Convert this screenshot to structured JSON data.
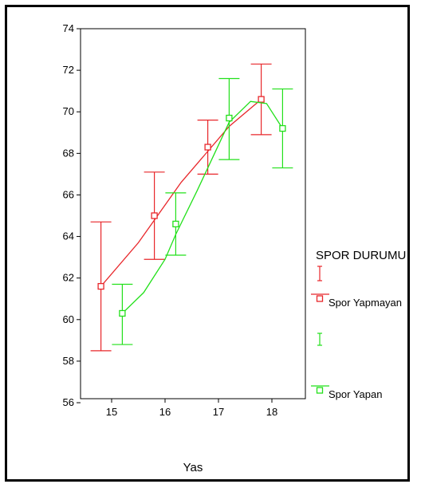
{
  "chart_data": {
    "type": "line",
    "xlabel": "Yas",
    "ylabel": "",
    "xlim": [
      14.5,
      18.7
    ],
    "ylim": [
      55.5,
      74
    ],
    "x_ticks": [
      "15",
      "16",
      "17",
      "18"
    ],
    "y_ticks": [
      "56",
      "58",
      "60",
      "62",
      "64",
      "66",
      "68",
      "70",
      "72",
      "74"
    ],
    "legend": {
      "title": "SPOR DURUMU",
      "placement": "right"
    },
    "series": [
      {
        "name": "Spor Yapmayan",
        "color": "#e8262a",
        "x": [
          14.8,
          15.8,
          16.8,
          17.8
        ],
        "mean": [
          61.6,
          65.0,
          68.3,
          70.6
        ],
        "lower": [
          58.5,
          62.9,
          67.0,
          68.9
        ],
        "upper": [
          64.7,
          67.1,
          69.6,
          72.3
        ],
        "fit_line": [
          [
            14.8,
            61.6
          ],
          [
            15.5,
            63.7
          ],
          [
            16.3,
            66.6
          ],
          [
            17.2,
            69.3
          ],
          [
            17.8,
            70.6
          ]
        ]
      },
      {
        "name": "Spor Yapan",
        "color": "#22e01a",
        "x": [
          15.2,
          16.2,
          17.2,
          18.2
        ],
        "mean": [
          60.3,
          64.6,
          69.7,
          69.2
        ],
        "lower": [
          58.8,
          63.1,
          67.7,
          67.3
        ],
        "upper": [
          61.7,
          66.1,
          71.6,
          71.1
        ],
        "fit_line": [
          [
            15.2,
            60.3
          ],
          [
            15.6,
            61.3
          ],
          [
            16.0,
            62.9
          ],
          [
            16.2,
            64.1
          ],
          [
            16.6,
            66.2
          ],
          [
            17.2,
            69.5
          ],
          [
            17.6,
            70.5
          ],
          [
            17.9,
            70.4
          ],
          [
            18.2,
            69.2
          ]
        ]
      }
    ]
  }
}
